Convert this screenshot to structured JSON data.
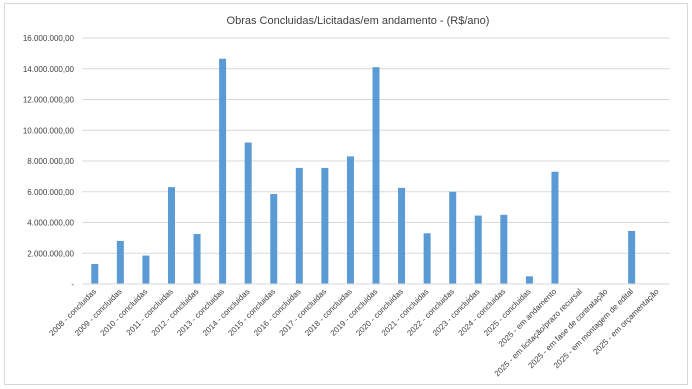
{
  "chart_data": {
    "type": "bar",
    "title": "Obras Concluidas/Licitadas/em andamento - (R$/ano)",
    "xlabel": "",
    "ylabel": "",
    "ylim": [
      0,
      16000000
    ],
    "grid": true,
    "legend": "none",
    "bar_color": "#5b9bd5",
    "grid_color": "#d9d9d9",
    "ytick_values": [
      0,
      2000000,
      4000000,
      6000000,
      8000000,
      10000000,
      12000000,
      14000000,
      16000000
    ],
    "ytick_labels": [
      "-",
      "2.000.000,00",
      "4.000.000,00",
      "6.000.000,00",
      "8.000.000,00",
      "10.000.000,00",
      "12.000.000,00",
      "14.000.000,00",
      "16.000.000,00"
    ],
    "categories": [
      "2008 - concluidas",
      "2009 - concluidas",
      "2010 - concluidas",
      "2011 - concluidas",
      "2012 - concluidas",
      "2013 - concluidas",
      "2014 - concluidas",
      "2015 - concluidas",
      "2016 - concluidas",
      "2017 - concluidas",
      "2018 - concluidas",
      "2019 - concluidas",
      "2020 - concluidas",
      "2021 - concluidas",
      "2022 - concluidas",
      "2023 - concluidas",
      "2024 - concluidas",
      "2025 - concluidas",
      "2025 - em andamento",
      "2025 - em licitação/prazo recursal",
      "2025 - em fase de contratação",
      "2025 - em montagem de edital",
      "2025 - em orçamentação"
    ],
    "values": [
      1300000,
      2800000,
      1850000,
      6300000,
      3250000,
      14650000,
      9200000,
      5850000,
      7550000,
      7550000,
      8300000,
      14100000,
      6250000,
      3300000,
      6000000,
      4450000,
      4500000,
      500000,
      7300000,
      0,
      0,
      3450000,
      0
    ]
  }
}
